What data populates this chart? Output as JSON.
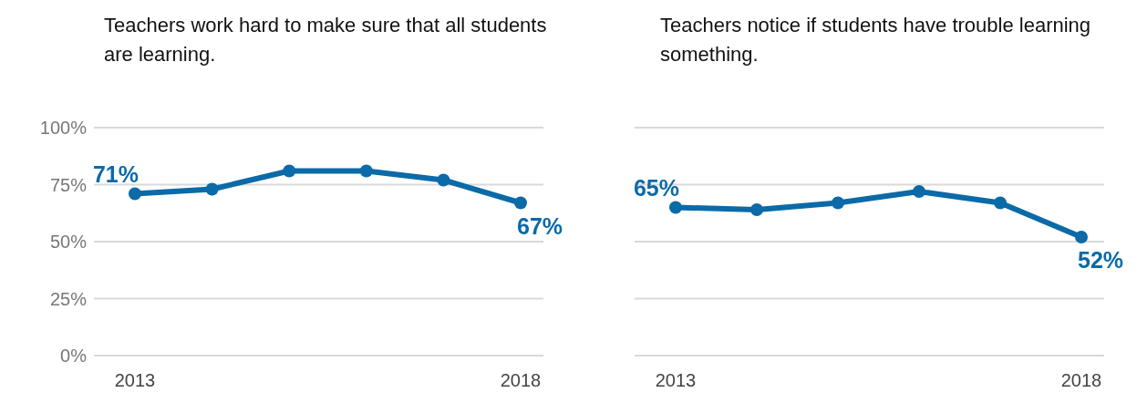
{
  "chart_data": [
    {
      "type": "line",
      "title": "Teachers work hard to make sure that all students are learning.",
      "categories": [
        "2013",
        null,
        null,
        null,
        null,
        "2018"
      ],
      "series": [
        {
          "color": "#0b6aa8",
          "values": [
            71,
            73,
            81,
            81,
            77,
            67
          ],
          "value_labels": [
            "71%",
            null,
            null,
            null,
            null,
            "67%"
          ]
        }
      ],
      "ylim": [
        0,
        100
      ],
      "yticks": [
        {
          "value": 0,
          "label": "0%"
        },
        {
          "value": 25,
          "label": "25%"
        },
        {
          "value": 50,
          "label": "50%"
        },
        {
          "value": 75,
          "label": "75%"
        },
        {
          "value": 100,
          "label": "100%"
        }
      ],
      "grid": "y",
      "marker": "circle",
      "line_style": "solid"
    },
    {
      "type": "line",
      "title": "Teachers notice if students have trouble learning something.",
      "categories": [
        "2013",
        null,
        null,
        null,
        null,
        "2018"
      ],
      "series": [
        {
          "color": "#0b6aa8",
          "values": [
            65,
            64,
            67,
            72,
            67,
            52
          ],
          "value_labels": [
            "65%",
            null,
            null,
            null,
            null,
            "52%"
          ]
        }
      ],
      "ylim": [
        0,
        100
      ],
      "yticks": [
        0,
        25,
        50,
        75,
        100
      ],
      "grid": "y",
      "marker": "circle",
      "line_style": "solid",
      "tick_labels": "x"
    }
  ]
}
